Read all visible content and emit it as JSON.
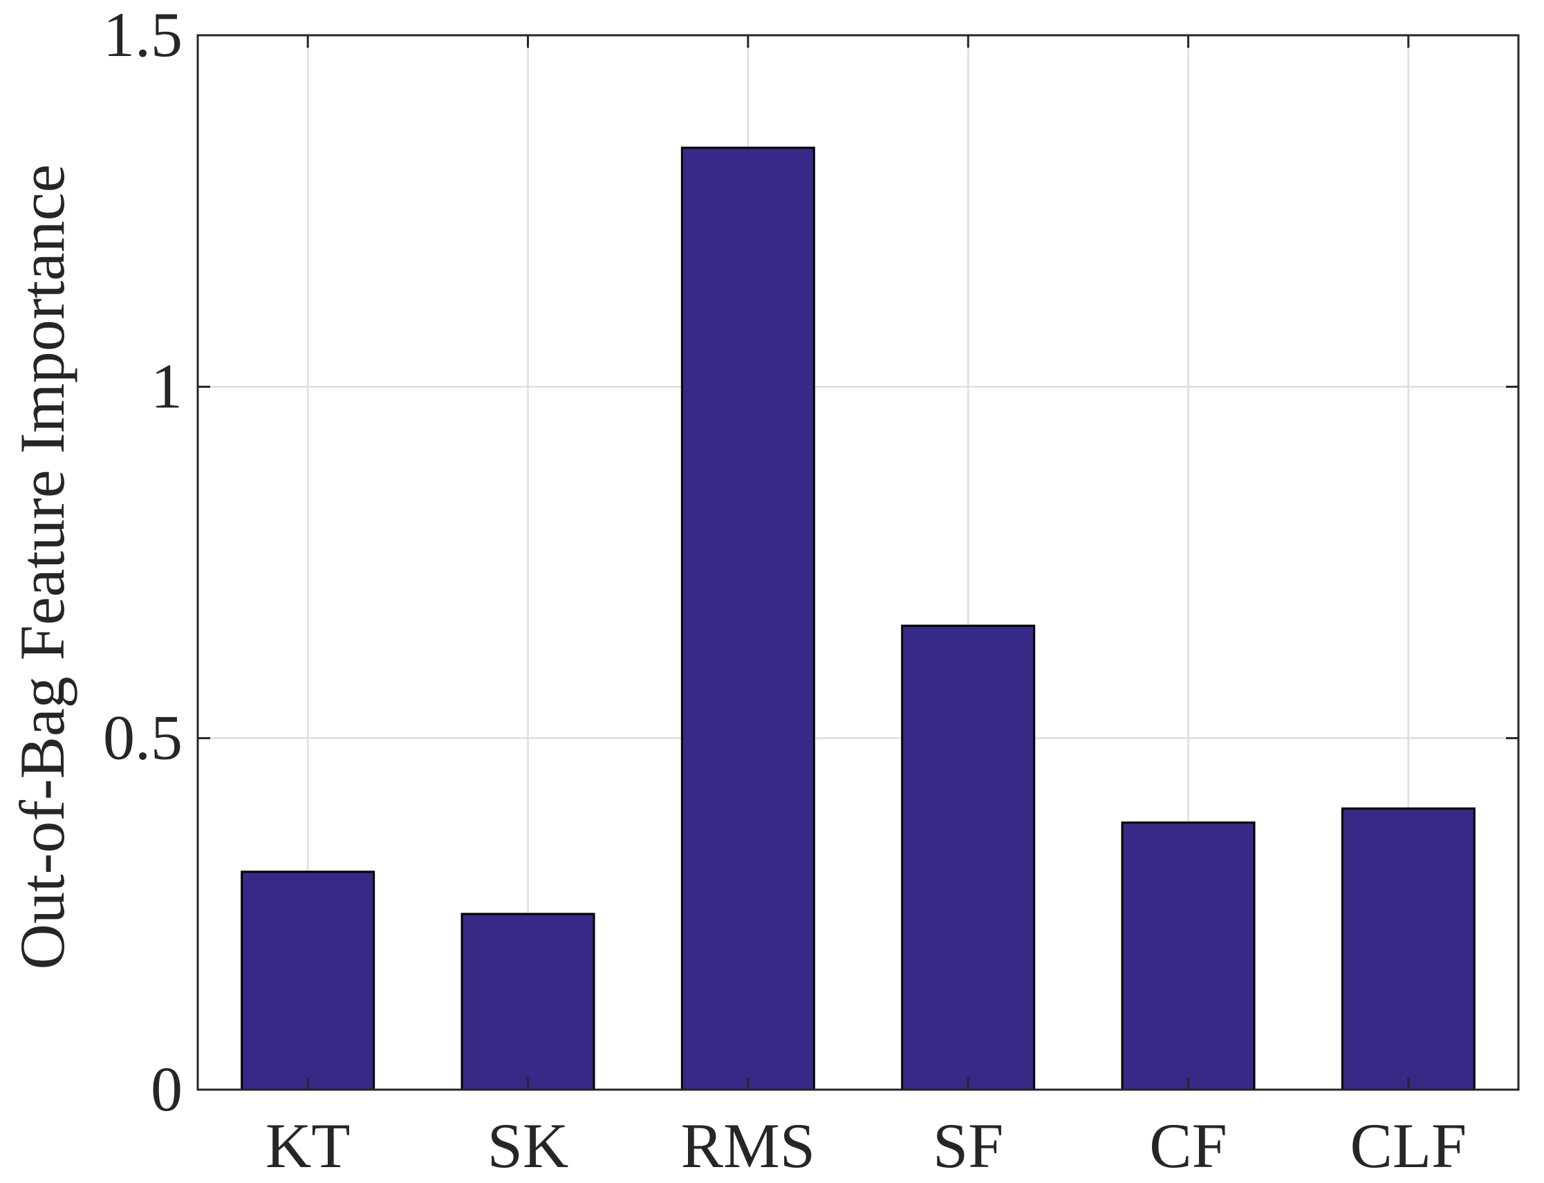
{
  "chart_data": {
    "type": "bar",
    "title": "",
    "xlabel": "",
    "ylabel": "Out-of-Bag Feature Importance",
    "categories": [
      "KT",
      "SK",
      "RMS",
      "SF",
      "CF",
      "CLF"
    ],
    "values": [
      0.31,
      0.25,
      1.34,
      0.66,
      0.38,
      0.4
    ],
    "ylim": [
      0,
      1.5
    ],
    "yticks": [
      0,
      0.5,
      1,
      1.5
    ],
    "ytick_labels": [
      "0",
      "0.5",
      "1",
      "1.5"
    ],
    "grid": true,
    "legend": "none",
    "colors": {
      "bar_fill": "#362A86",
      "bar_edge": "#000000",
      "grid": "#DEDEDE",
      "axis": "#262626"
    }
  }
}
